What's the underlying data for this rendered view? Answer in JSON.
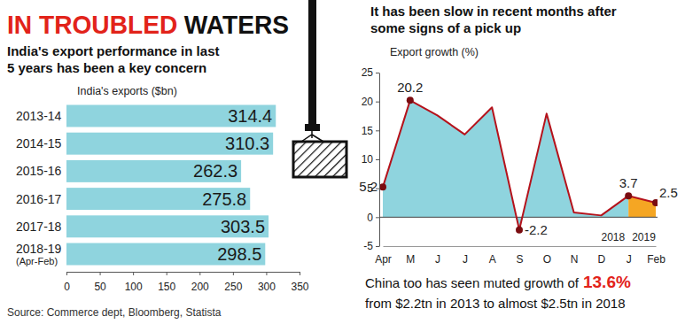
{
  "header": {
    "title": [
      "IN TROUBLED",
      "WATERS"
    ],
    "source": "Source: Commerce dept, Bloomberg, Statista"
  },
  "chart_data": [
    {
      "type": "bar",
      "orientation": "horizontal",
      "title": [
        "India's export performance in last",
        "5 years has been a key concern"
      ],
      "xlabel": "India's exports ($bn)",
      "categories": [
        "2013-14",
        "2014-15",
        "2015-16",
        "2016-17",
        "2017-18",
        "2018-19\n(Apr-Feb)"
      ],
      "values": [
        314.4,
        310.3,
        262.3,
        275.8,
        303.5,
        298.5
      ],
      "color": "#8fd4de",
      "xlim": [
        0,
        350
      ],
      "xticks": [
        0,
        50,
        100,
        150,
        200,
        250,
        300,
        350
      ],
      "data_labels": true,
      "grid": false
    },
    {
      "type": "area",
      "title": [
        "It has been slow in recent months after",
        "some signs of a pick up"
      ],
      "ylabel": "Export growth (%)",
      "categories": [
        "Apr",
        "M",
        "J",
        "J",
        "A",
        "S",
        "O",
        "N",
        "D",
        "J",
        "Feb"
      ],
      "series": [
        {
          "name": "2018",
          "color": "#8fd4de",
          "values": [
            5.2,
            20.2,
            17.6,
            14.3,
            19,
            -2.2,
            17.9,
            0.8,
            0.3,
            3.7,
            null
          ],
          "value_labels": [
            "5.2",
            "20.2",
            null,
            null,
            null,
            "-2.2",
            null,
            null,
            null,
            "3.7",
            null
          ]
        },
        {
          "name": "2019",
          "color": "#f5a623",
          "values": [
            null,
            null,
            null,
            null,
            null,
            null,
            null,
            null,
            null,
            3.7,
            2.5
          ],
          "value_labels": [
            null,
            null,
            null,
            null,
            null,
            null,
            null,
            null,
            null,
            null,
            "2.5"
          ]
        }
      ],
      "ylim": [
        -5,
        25
      ],
      "yticks": [
        -5,
        0,
        5,
        10,
        15,
        20,
        25
      ],
      "marker": "circle",
      "grid": false,
      "note": [
        {
          "text": "China too has seen muted growth of",
          "highlight": "13.6%"
        },
        {
          "text": "from $2.2tn in 2013 to almost $2.5tn in 2018"
        }
      ]
    }
  ]
}
